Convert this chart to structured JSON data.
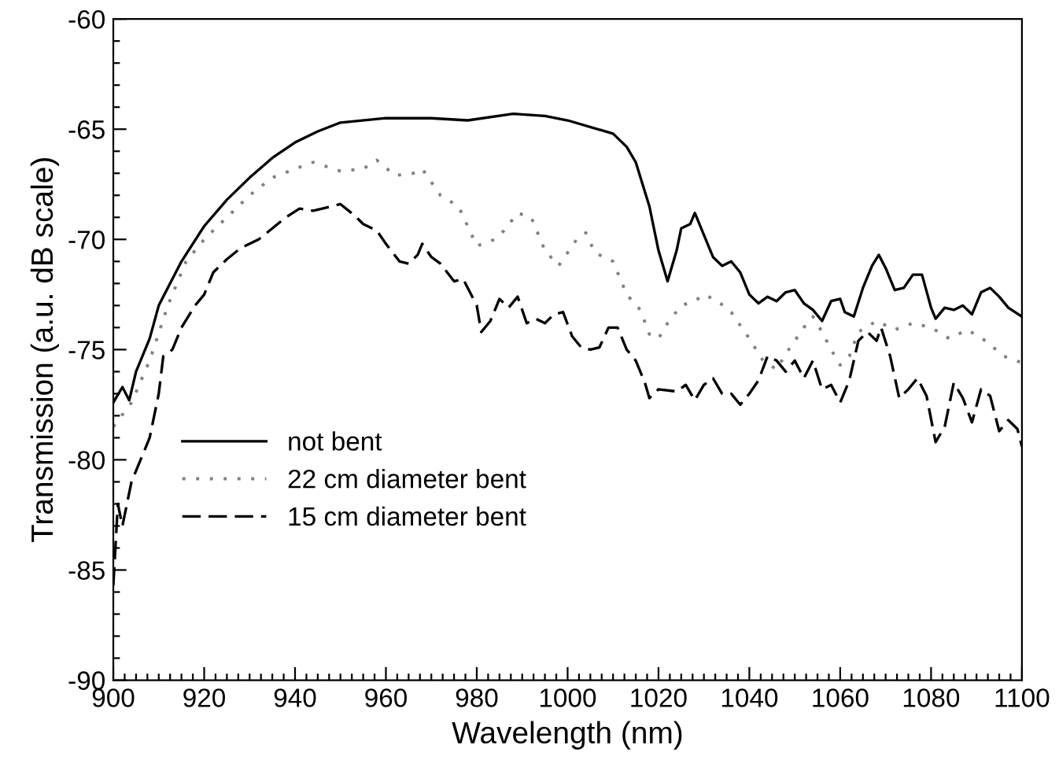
{
  "chart_data": {
    "type": "line",
    "xlabel": "Wavelength (nm)",
    "ylabel": "Transmission (a.u. dB scale)",
    "xlim": [
      900,
      1100
    ],
    "ylim": [
      -90,
      -60
    ],
    "xticks": [
      900,
      {
        "value": 902.5,
        "label": null
      },
      {
        "value": 905,
        "label": null
      },
      {
        "value": 907.5,
        "label": null
      },
      {
        "value": 910,
        "label": null
      },
      {
        "value": 912.5,
        "label": null
      },
      {
        "value": 915,
        "label": null
      },
      {
        "value": 917.5,
        "label": null
      },
      920,
      {
        "value": 922.5,
        "label": null
      },
      {
        "value": 925,
        "label": null
      },
      {
        "value": 927.5,
        "label": null
      },
      {
        "value": 930,
        "label": null
      },
      {
        "value": 932.5,
        "label": null
      },
      {
        "value": 935,
        "label": null
      },
      {
        "value": 937.5,
        "label": null
      },
      940,
      {
        "value": 942.5,
        "label": null
      },
      {
        "value": 945,
        "label": null
      },
      {
        "value": 947.5,
        "label": null
      },
      {
        "value": 950,
        "label": null
      },
      {
        "value": 952.5,
        "label": null
      },
      {
        "value": 955,
        "label": null
      },
      {
        "value": 957.5,
        "label": null
      },
      960,
      {
        "value": 962.5,
        "label": null
      },
      {
        "value": 965,
        "label": null
      },
      {
        "value": 967.5,
        "label": null
      },
      {
        "value": 970,
        "label": null
      },
      {
        "value": 972.5,
        "label": null
      },
      {
        "value": 975,
        "label": null
      },
      {
        "value": 977.5,
        "label": null
      },
      980,
      {
        "value": 982.5,
        "label": null
      },
      {
        "value": 985,
        "label": null
      },
      {
        "value": 987.5,
        "label": null
      },
      {
        "value": 990,
        "label": null
      },
      {
        "value": 992.5,
        "label": null
      },
      {
        "value": 995,
        "label": null
      },
      {
        "value": 997.5,
        "label": null
      },
      1000,
      {
        "value": 1002.5,
        "label": null
      },
      {
        "value": 1005,
        "label": null
      },
      {
        "value": 1007.5,
        "label": null
      },
      {
        "value": 1010,
        "label": null
      },
      {
        "value": 1012.5,
        "label": null
      },
      {
        "value": 1015,
        "label": null
      },
      {
        "value": 1017.5,
        "label": null
      },
      1020,
      {
        "value": 1022.5,
        "label": null
      },
      {
        "value": 1025,
        "label": null
      },
      {
        "value": 1027.5,
        "label": null
      },
      {
        "value": 1030,
        "label": null
      },
      {
        "value": 1032.5,
        "label": null
      },
      {
        "value": 1035,
        "label": null
      },
      {
        "value": 1037.5,
        "label": null
      },
      1040,
      {
        "value": 1042.5,
        "label": null
      },
      {
        "value": 1045,
        "label": null
      },
      {
        "value": 1047.5,
        "label": null
      },
      {
        "value": 1050,
        "label": null
      },
      {
        "value": 1052.5,
        "label": null
      },
      {
        "value": 1055,
        "label": null
      },
      {
        "value": 1057.5,
        "label": null
      },
      1060,
      {
        "value": 1062.5,
        "label": null
      },
      {
        "value": 1065,
        "label": null
      },
      {
        "value": 1067.5,
        "label": null
      },
      {
        "value": 1070,
        "label": null
      },
      {
        "value": 1072.5,
        "label": null
      },
      {
        "value": 1075,
        "label": null
      },
      {
        "value": 1077.5,
        "label": null
      },
      1080,
      {
        "value": 1082.5,
        "label": null
      },
      {
        "value": 1085,
        "label": null
      },
      {
        "value": 1087.5,
        "label": null
      },
      {
        "value": 1090,
        "label": null
      },
      {
        "value": 1092.5,
        "label": null
      },
      {
        "value": 1095,
        "label": null
      },
      {
        "value": 1097.5,
        "label": null
      },
      1100
    ],
    "yticks": [
      -90,
      {
        "value": -89,
        "label": null
      },
      {
        "value": -88,
        "label": null
      },
      {
        "value": -87,
        "label": null
      },
      {
        "value": -86,
        "label": null
      },
      -85,
      {
        "value": -84,
        "label": null
      },
      {
        "value": -83,
        "label": null
      },
      {
        "value": -82,
        "label": null
      },
      {
        "value": -81,
        "label": null
      },
      -80,
      {
        "value": -79,
        "label": null
      },
      {
        "value": -78,
        "label": null
      },
      {
        "value": -77,
        "label": null
      },
      {
        "value": -76,
        "label": null
      },
      -75,
      {
        "value": -74,
        "label": null
      },
      {
        "value": -73,
        "label": null
      },
      {
        "value": -72,
        "label": null
      },
      {
        "value": -71,
        "label": null
      },
      -70,
      {
        "value": -69,
        "label": null
      },
      {
        "value": -68,
        "label": null
      },
      {
        "value": -67,
        "label": null
      },
      {
        "value": -66,
        "label": null
      },
      -65,
      {
        "value": -64,
        "label": null
      },
      {
        "value": -63,
        "label": null
      },
      {
        "value": -62,
        "label": null
      },
      {
        "value": -61,
        "label": null
      },
      -60
    ],
    "legend": "bottom left",
    "grid": false,
    "marker": "none",
    "series": [
      {
        "name": "not bent",
        "color": "#000000",
        "line_style": "solid",
        "x": [
          900,
          902,
          903.5,
          905,
          908,
          910,
          915,
          920,
          925,
          930,
          935,
          940,
          945,
          950,
          960,
          970,
          978,
          988,
          995,
          1000,
          1010,
          1013,
          1015,
          1018,
          1020,
          1022,
          1024,
          1025,
          1027,
          1028,
          1030,
          1032,
          1034,
          1036,
          1038,
          1040,
          1042,
          1044,
          1046,
          1048,
          1050,
          1052,
          1054,
          1056,
          1058,
          1060,
          1061,
          1063,
          1065,
          1067,
          1068.5,
          1070,
          1072,
          1074,
          1076,
          1078,
          1080,
          1081,
          1083,
          1085,
          1087,
          1089,
          1091,
          1093,
          1095,
          1097,
          1100
        ],
        "values": [
          -77.4,
          -76.7,
          -77.3,
          -76,
          -74.5,
          -73,
          -71,
          -69.4,
          -68.2,
          -67.2,
          -66.3,
          -65.6,
          -65.1,
          -64.7,
          -64.5,
          -64.5,
          -64.6,
          -64.3,
          -64.4,
          -64.6,
          -65.2,
          -65.8,
          -66.5,
          -68.5,
          -70.5,
          -71.9,
          -70.5,
          -69.5,
          -69.3,
          -68.8,
          -69.8,
          -70.8,
          -71.2,
          -71,
          -71.5,
          -72.5,
          -72.9,
          -72.6,
          -72.8,
          -72.4,
          -72.3,
          -72.9,
          -73.2,
          -73.7,
          -72.8,
          -72.7,
          -73.3,
          -73.5,
          -72.2,
          -71.2,
          -70.7,
          -71.3,
          -72.3,
          -72.2,
          -71.6,
          -71.6,
          -73.1,
          -73.6,
          -73.1,
          -73.2,
          -73,
          -73.4,
          -72.4,
          -72.2,
          -72.6,
          -73.1,
          -73.5
        ]
      },
      {
        "name": "22 cm diameter bent",
        "color": "#808080",
        "line_style": "dotted",
        "x": [
          900,
          904,
          908,
          912,
          916,
          920,
          925,
          930,
          935,
          940,
          944,
          950,
          955,
          958,
          962,
          966,
          968,
          972,
          976,
          980,
          984,
          986,
          989,
          992,
          995,
          998,
          1002,
          1004,
          1006,
          1010,
          1013,
          1016,
          1018,
          1020,
          1022,
          1025,
          1028,
          1030,
          1033,
          1036,
          1040,
          1043,
          1046,
          1048,
          1052,
          1054,
          1056,
          1058,
          1060,
          1062,
          1064,
          1068,
          1072,
          1076,
          1080,
          1084,
          1088,
          1092,
          1096,
          1100
        ],
        "values": [
          -78.5,
          -77.4,
          -75.5,
          -73,
          -71,
          -70,
          -69,
          -68,
          -67.2,
          -66.8,
          -66.5,
          -66.9,
          -66.8,
          -66.4,
          -67.1,
          -67,
          -66.8,
          -68,
          -68.5,
          -70.3,
          -70,
          -69.6,
          -68.8,
          -69,
          -70.5,
          -71.2,
          -70,
          -69.7,
          -70.6,
          -71,
          -72.5,
          -73.2,
          -74.3,
          -74.5,
          -73.8,
          -73,
          -72.8,
          -72.5,
          -72.8,
          -73.3,
          -74.5,
          -75.5,
          -75.9,
          -75.2,
          -74,
          -73.5,
          -74.2,
          -75,
          -75.7,
          -75.3,
          -74.2,
          -73.7,
          -74.1,
          -73.8,
          -74,
          -74.5,
          -74.1,
          -74.6,
          -75.3,
          -75.6
        ]
      },
      {
        "name": "15 cm diameter bent",
        "color": "#000000",
        "line_style": "dashed",
        "x": [
          900,
          901,
          902,
          904,
          906,
          908,
          910,
          911,
          913,
          915,
          918,
          920,
          922,
          925,
          928,
          932,
          935,
          938,
          941,
          944,
          946,
          950,
          953,
          955,
          958,
          960,
          963,
          965,
          967,
          968,
          970,
          972,
          975,
          977,
          980,
          981,
          983,
          985,
          987,
          989,
          991,
          993,
          995,
          997,
          999,
          1001,
          1003,
          1005,
          1007,
          1009,
          1011,
          1013,
          1015,
          1017,
          1018,
          1020,
          1024,
          1026,
          1028,
          1030,
          1032,
          1034,
          1036,
          1038,
          1040,
          1042,
          1044,
          1046,
          1048,
          1050,
          1052,
          1054,
          1056,
          1058,
          1060,
          1062,
          1064,
          1066,
          1068,
          1069,
          1071,
          1073,
          1075,
          1077,
          1079,
          1081,
          1083,
          1085,
          1087,
          1089,
          1091,
          1093,
          1095,
          1097,
          1099,
          1100
        ],
        "values": [
          -85.7,
          -82,
          -83,
          -81,
          -80,
          -79,
          -77,
          -75.3,
          -75,
          -74,
          -73,
          -72.5,
          -71.5,
          -70.9,
          -70.4,
          -70,
          -69.5,
          -69,
          -68.6,
          -68.7,
          -68.6,
          -68.4,
          -68.9,
          -69.3,
          -69.6,
          -70.2,
          -71,
          -71.1,
          -70.7,
          -70.2,
          -70.8,
          -71.1,
          -71.9,
          -71.8,
          -73,
          -74.2,
          -73.7,
          -72.7,
          -73.1,
          -72.6,
          -73.8,
          -73.6,
          -73.8,
          -73.4,
          -73.3,
          -74.4,
          -74.9,
          -75,
          -74.9,
          -74,
          -74,
          -75,
          -75.5,
          -76.5,
          -77.2,
          -76.8,
          -76.9,
          -76.6,
          -77.3,
          -76.6,
          -76.3,
          -77,
          -77,
          -77.5,
          -77,
          -76.4,
          -75.3,
          -75.5,
          -76,
          -75.5,
          -76.3,
          -75.5,
          -76.8,
          -76.6,
          -77.4,
          -76.4,
          -74.6,
          -74.2,
          -74.6,
          -74,
          -75.3,
          -77.2,
          -76.8,
          -76.3,
          -77.1,
          -79.2,
          -78.5,
          -76.5,
          -77.2,
          -78.3,
          -76.8,
          -77.1,
          -78.7,
          -78.2,
          -78.6,
          -79.4
        ]
      }
    ]
  }
}
